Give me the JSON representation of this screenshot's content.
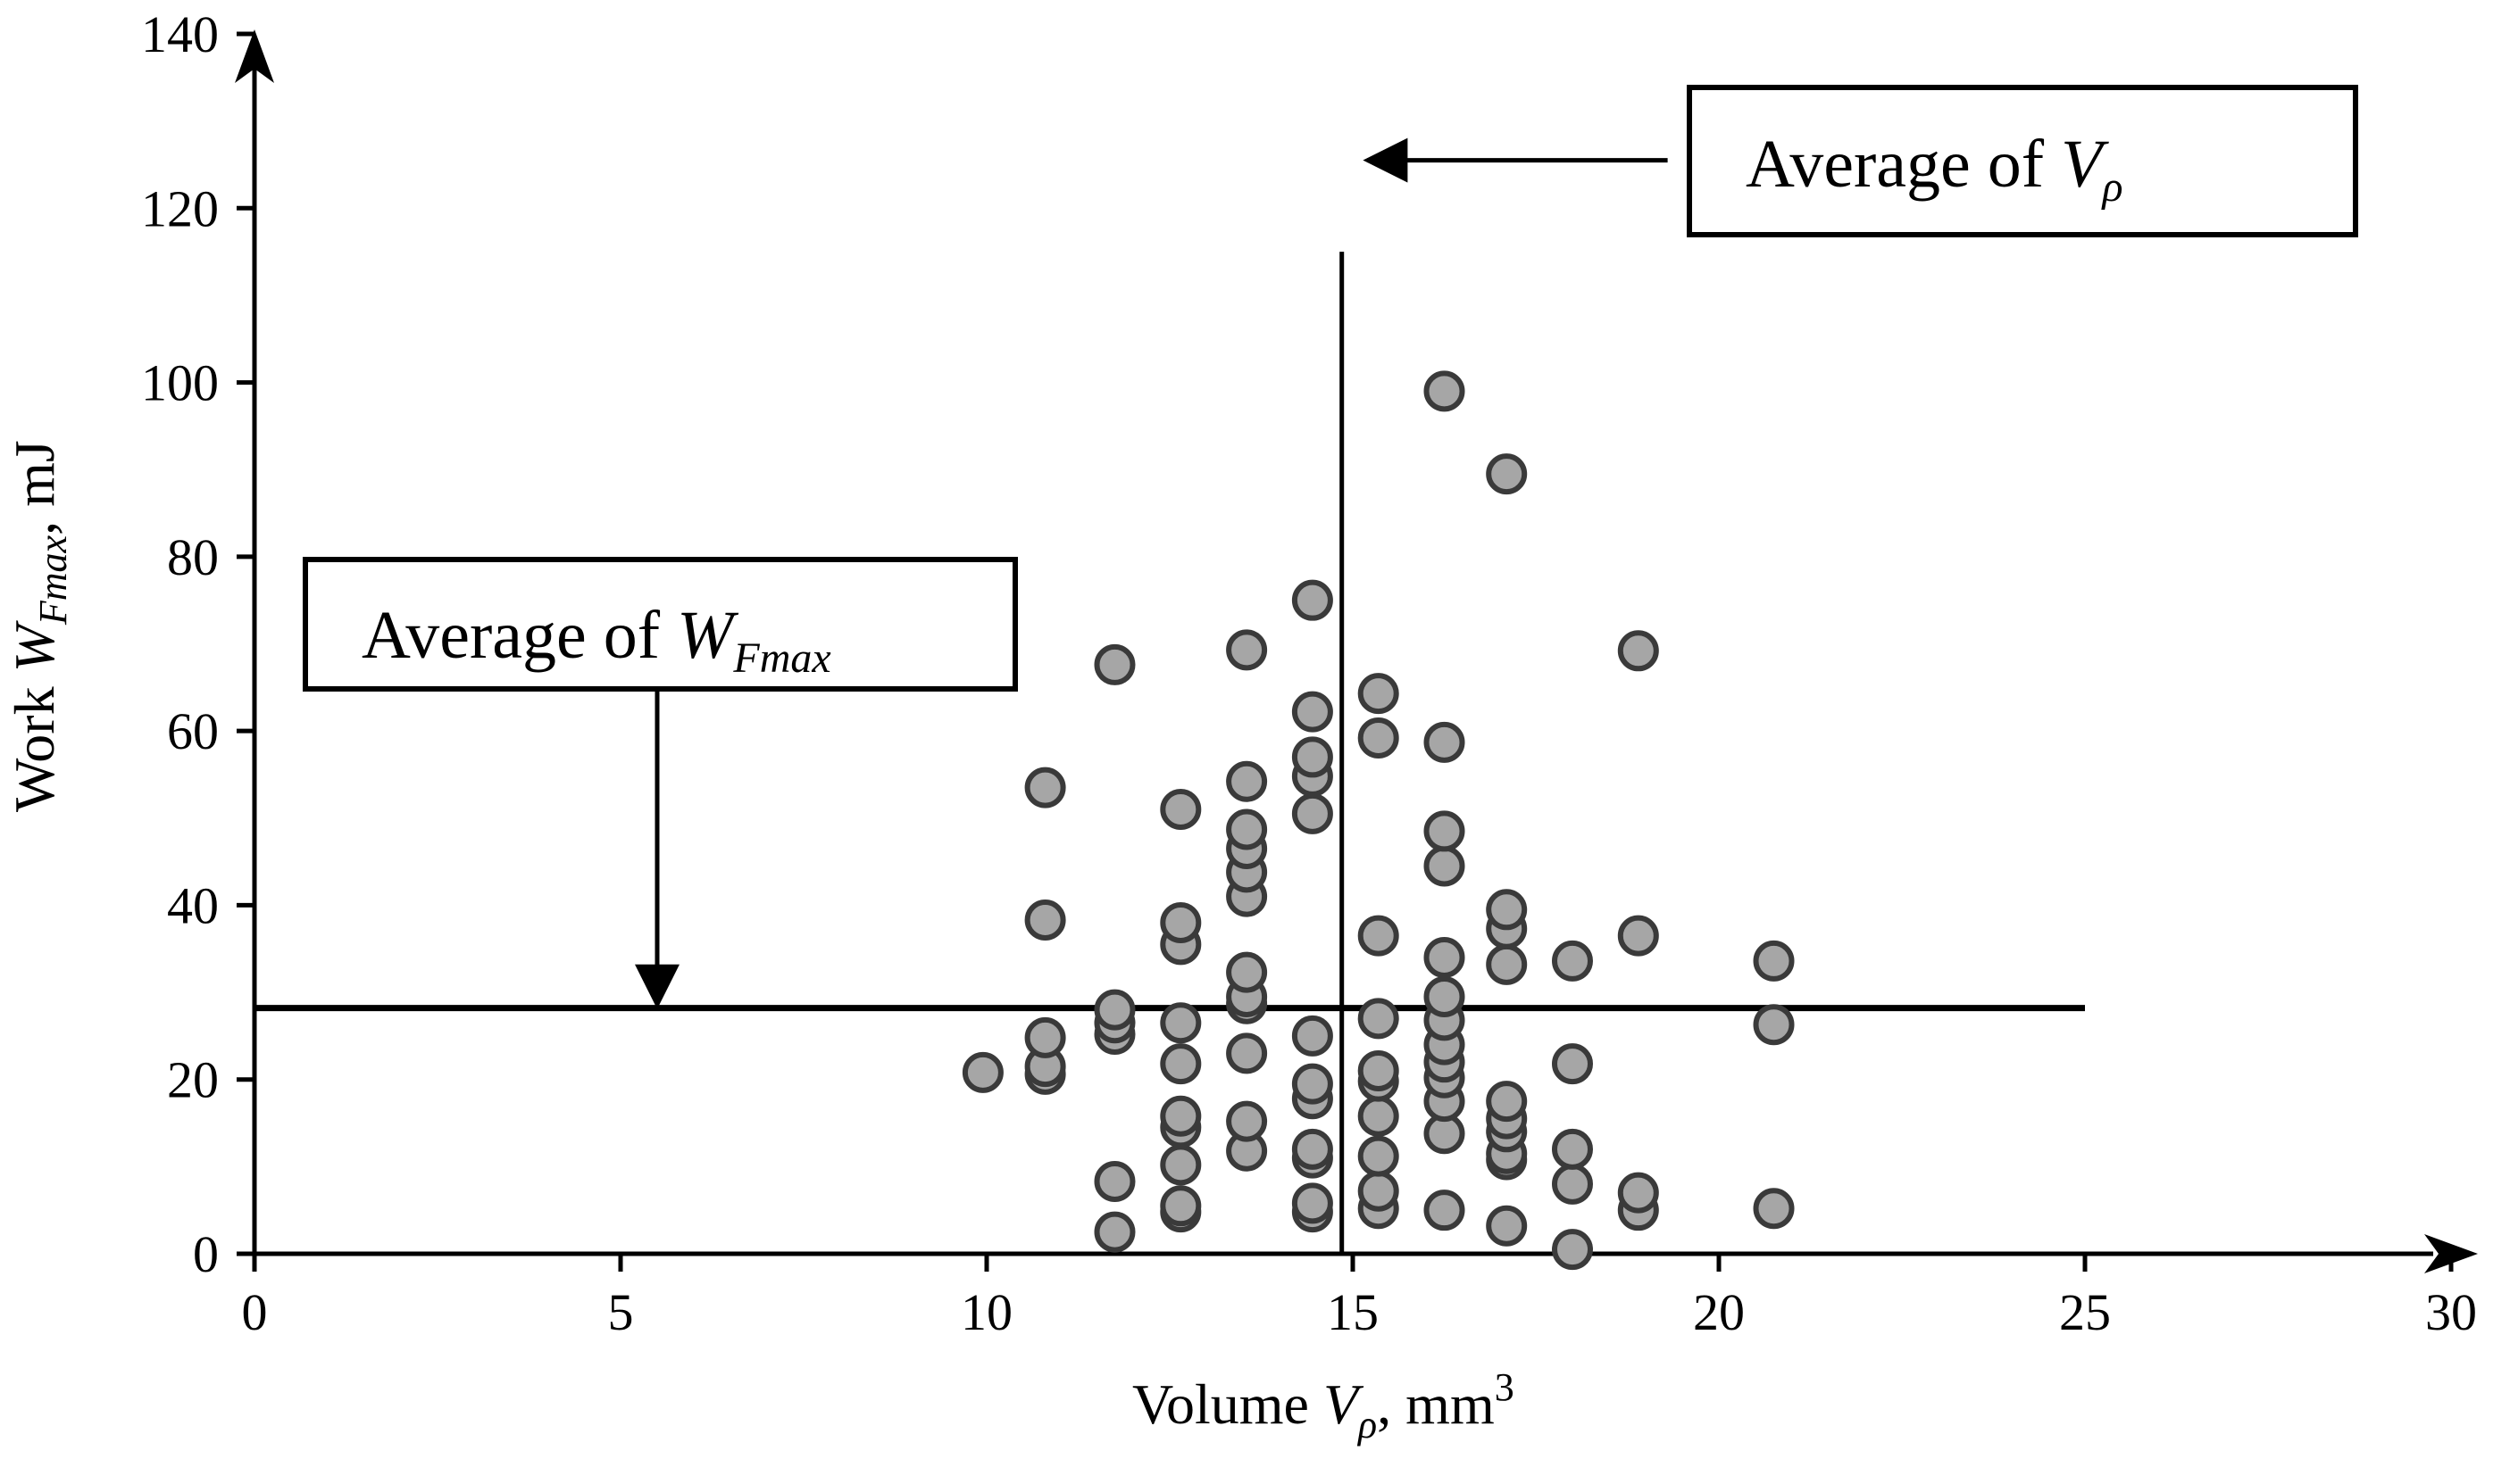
{
  "chart_data": {
    "type": "scatter",
    "title": "",
    "xlabel": {
      "prefix": "Volume ",
      "symbol": "V",
      "sub": "ρ",
      "suffix": ", mm",
      "sup": "3"
    },
    "ylabel": {
      "prefix": "Work ",
      "symbol": "W",
      "sub": "Fmax",
      "suffix": ", mJ"
    },
    "xlim": [
      0,
      30
    ],
    "ylim": [
      0,
      140
    ],
    "xticks": [
      0,
      5,
      10,
      15,
      20,
      25,
      30
    ],
    "yticks": [
      0,
      20,
      40,
      60,
      80,
      100,
      120,
      140
    ],
    "xtick_labels": [
      "0",
      "5",
      "10",
      "15",
      "20",
      "25",
      "30"
    ],
    "ytick_labels": [
      "0",
      "20",
      "40",
      "60",
      "80",
      "100",
      "120",
      "140"
    ],
    "grid": false,
    "marker_color": "#a6a6a6",
    "marker_edge": "#3a3a3a",
    "average_lines": {
      "vertical_x": 14.85,
      "vertical_y_range": [
        0,
        115
      ],
      "horizontal_y": 28.2,
      "horizontal_x_range": [
        0,
        25
      ]
    },
    "annotations": [
      {
        "id": "avg-v",
        "prefix": "Average of ",
        "symbol": "V",
        "sub": "ρ",
        "arrow_from": [
          19.3,
          125.5
        ],
        "arrow_to": [
          15.2,
          125.5
        ]
      },
      {
        "id": "avg-w",
        "prefix": "Average of ",
        "symbol": "W",
        "sub": "Fmax",
        "arrow_from": [
          5.5,
          64.8
        ],
        "arrow_to": [
          5.5,
          28.6
        ]
      }
    ],
    "series": [
      {
        "name": "measurements",
        "points": [
          [
            9.95,
            20.8
          ],
          [
            10.8,
            20.6
          ],
          [
            10.8,
            21.5
          ],
          [
            10.8,
            24.8
          ],
          [
            10.8,
            38.3
          ],
          [
            10.8,
            53.5
          ],
          [
            11.75,
            2.5
          ],
          [
            11.75,
            8.3
          ],
          [
            11.75,
            25.2
          ],
          [
            11.75,
            26.5
          ],
          [
            11.75,
            28.0
          ],
          [
            11.75,
            67.6
          ],
          [
            12.65,
            4.8
          ],
          [
            12.65,
            5.5
          ],
          [
            12.65,
            10.2
          ],
          [
            12.65,
            14.5
          ],
          [
            12.65,
            15.8
          ],
          [
            12.65,
            21.8
          ],
          [
            12.65,
            26.5
          ],
          [
            12.65,
            35.5
          ],
          [
            12.65,
            38.0
          ],
          [
            12.65,
            51.0
          ],
          [
            13.55,
            11.8
          ],
          [
            13.55,
            15.2
          ],
          [
            13.55,
            23.0
          ],
          [
            13.55,
            28.7
          ],
          [
            13.55,
            29.5
          ],
          [
            13.55,
            32.3
          ],
          [
            13.55,
            41.0
          ],
          [
            13.55,
            43.8
          ],
          [
            13.55,
            46.5
          ],
          [
            13.55,
            48.7
          ],
          [
            13.55,
            54.2
          ],
          [
            13.55,
            69.3
          ],
          [
            14.45,
            4.8
          ],
          [
            14.45,
            5.8
          ],
          [
            14.45,
            11.0
          ],
          [
            14.45,
            12.0
          ],
          [
            14.45,
            17.8
          ],
          [
            14.45,
            19.5
          ],
          [
            14.45,
            25.0
          ],
          [
            14.45,
            50.5
          ],
          [
            14.45,
            54.8
          ],
          [
            14.45,
            57.0
          ],
          [
            14.45,
            62.2
          ],
          [
            14.45,
            75.0
          ],
          [
            15.35,
            5.2
          ],
          [
            15.35,
            7.2
          ],
          [
            15.35,
            11.2
          ],
          [
            15.35,
            15.8
          ],
          [
            15.35,
            19.8
          ],
          [
            15.35,
            21.0
          ],
          [
            15.35,
            27.0
          ],
          [
            15.35,
            36.5
          ],
          [
            15.35,
            59.2
          ],
          [
            15.35,
            64.3
          ],
          [
            16.25,
            5.0
          ],
          [
            16.25,
            13.8
          ],
          [
            16.25,
            17.5
          ],
          [
            16.25,
            20.2
          ],
          [
            16.25,
            22.0
          ],
          [
            16.25,
            24.0
          ],
          [
            16.25,
            26.8
          ],
          [
            16.25,
            29.5
          ],
          [
            16.25,
            34.0
          ],
          [
            16.25,
            44.5
          ],
          [
            16.25,
            48.5
          ],
          [
            16.25,
            58.7
          ],
          [
            16.25,
            99.0
          ],
          [
            17.1,
            3.2
          ],
          [
            17.1,
            10.8
          ],
          [
            17.1,
            11.5
          ],
          [
            17.1,
            14.0
          ],
          [
            17.1,
            15.5
          ],
          [
            17.1,
            17.5
          ],
          [
            17.1,
            33.2
          ],
          [
            17.1,
            37.3
          ],
          [
            17.1,
            39.5
          ],
          [
            17.1,
            89.5
          ],
          [
            18.0,
            0.5
          ],
          [
            18.0,
            8.0
          ],
          [
            18.0,
            12.0
          ],
          [
            18.0,
            21.8
          ],
          [
            18.0,
            33.6
          ],
          [
            18.9,
            5.0
          ],
          [
            18.9,
            7.0
          ],
          [
            18.9,
            36.5
          ],
          [
            18.9,
            69.2
          ],
          [
            20.75,
            5.2
          ],
          [
            20.75,
            26.3
          ],
          [
            20.75,
            33.6
          ]
        ]
      }
    ]
  }
}
